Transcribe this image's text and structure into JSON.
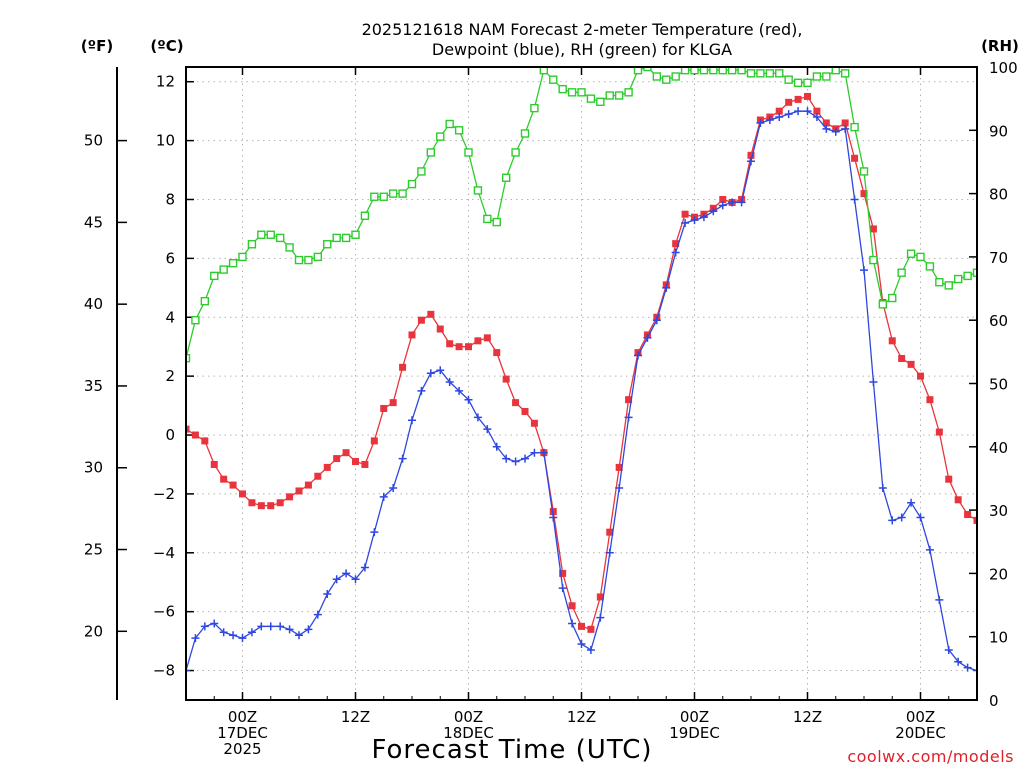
{
  "chart_data": {
    "type": "line",
    "title_line1": "2025121618 NAM Forecast 2-meter Temperature (red),",
    "title_line2": "Dewpoint (blue), RH (green) for KLGA",
    "xlabel": "Forecast Time (UTC)",
    "units": {
      "fahrenheit": "(ºF)",
      "celsius": "(ºC)",
      "rh": "(RH)"
    },
    "credit": "coolwx.com/models",
    "x_range_hours": [
      18,
      102
    ],
    "y_celsius_range": [
      -9,
      12.5
    ],
    "y_rh_range": [
      0,
      100
    ],
    "y_celsius_ticks": [
      -8,
      -6,
      -4,
      -2,
      0,
      2,
      4,
      6,
      8,
      10,
      12
    ],
    "y_fahrenheit_ticks": [
      20,
      25,
      30,
      35,
      40,
      45,
      50
    ],
    "y_rh_ticks": [
      0,
      10,
      20,
      30,
      40,
      50,
      60,
      70,
      80,
      90,
      100
    ],
    "x_ticks": [
      {
        "hour": 24,
        "lines": [
          "00Z",
          "17DEC",
          "2025"
        ]
      },
      {
        "hour": 36,
        "lines": [
          "12Z"
        ]
      },
      {
        "hour": 48,
        "lines": [
          "00Z",
          "18DEC"
        ]
      },
      {
        "hour": 60,
        "lines": [
          "12Z"
        ]
      },
      {
        "hour": 72,
        "lines": [
          "00Z",
          "19DEC"
        ]
      },
      {
        "hour": 84,
        "lines": [
          "12Z"
        ]
      },
      {
        "hour": 96,
        "lines": [
          "00Z",
          "20DEC"
        ]
      }
    ],
    "series": [
      {
        "name": "Temperature",
        "unit": "C",
        "color": "#e8343c",
        "marker": "filled-square",
        "points": [
          [
            18,
            0.2
          ],
          [
            19,
            0
          ],
          [
            20,
            -0.2
          ],
          [
            21,
            -1
          ],
          [
            22,
            -1.5
          ],
          [
            23,
            -1.7
          ],
          [
            24,
            -2
          ],
          [
            25,
            -2.3
          ],
          [
            26,
            -2.4
          ],
          [
            27,
            -2.4
          ],
          [
            28,
            -2.3
          ],
          [
            29,
            -2.1
          ],
          [
            30,
            -1.9
          ],
          [
            31,
            -1.7
          ],
          [
            32,
            -1.4
          ],
          [
            33,
            -1.1
          ],
          [
            34,
            -0.8
          ],
          [
            35,
            -0.6
          ],
          [
            36,
            -0.9
          ],
          [
            37,
            -1
          ],
          [
            38,
            -0.2
          ],
          [
            39,
            0.9
          ],
          [
            40,
            1.1
          ],
          [
            41,
            2.3
          ],
          [
            42,
            3.4
          ],
          [
            43,
            3.9
          ],
          [
            44,
            4.1
          ],
          [
            45,
            3.6
          ],
          [
            46,
            3.1
          ],
          [
            47,
            3
          ],
          [
            48,
            3
          ],
          [
            49,
            3.2
          ],
          [
            50,
            3.3
          ],
          [
            51,
            2.8
          ],
          [
            52,
            1.9
          ],
          [
            53,
            1.1
          ],
          [
            54,
            0.8
          ],
          [
            55,
            0.4
          ],
          [
            56,
            -0.6
          ],
          [
            57,
            -2.6
          ],
          [
            58,
            -4.7
          ],
          [
            59,
            -5.8
          ],
          [
            60,
            -6.5
          ],
          [
            61,
            -6.6
          ],
          [
            62,
            -5.5
          ],
          [
            63,
            -3.3
          ],
          [
            64,
            -1.1
          ],
          [
            65,
            1.2
          ],
          [
            66,
            2.8
          ],
          [
            67,
            3.4
          ],
          [
            68,
            4
          ],
          [
            69,
            5.1
          ],
          [
            70,
            6.5
          ],
          [
            71,
            7.5
          ],
          [
            72,
            7.4
          ],
          [
            73,
            7.5
          ],
          [
            74,
            7.7
          ],
          [
            75,
            8
          ],
          [
            76,
            7.9
          ],
          [
            77,
            8
          ],
          [
            78,
            9.5
          ],
          [
            79,
            10.7
          ],
          [
            80,
            10.8
          ],
          [
            81,
            11
          ],
          [
            82,
            11.3
          ],
          [
            83,
            11.4
          ],
          [
            84,
            11.5
          ],
          [
            85,
            11
          ],
          [
            86,
            10.6
          ],
          [
            87,
            10.4
          ],
          [
            88,
            10.6
          ],
          [
            89,
            9.4
          ],
          [
            90,
            8.2
          ],
          [
            91,
            7
          ],
          [
            92,
            4.5
          ],
          [
            93,
            3.2
          ],
          [
            94,
            2.6
          ],
          [
            95,
            2.4
          ],
          [
            96,
            2
          ],
          [
            97,
            1.2
          ],
          [
            98,
            0.1
          ],
          [
            99,
            -1.5
          ],
          [
            100,
            -2.2
          ],
          [
            101,
            -2.7
          ],
          [
            102,
            -2.9
          ]
        ]
      },
      {
        "name": "Dewpoint",
        "unit": "C",
        "color": "#2e47e0",
        "marker": "plus",
        "points": [
          [
            18,
            -8
          ],
          [
            19,
            -6.9
          ],
          [
            20,
            -6.5
          ],
          [
            21,
            -6.4
          ],
          [
            22,
            -6.7
          ],
          [
            23,
            -6.8
          ],
          [
            24,
            -6.9
          ],
          [
            25,
            -6.7
          ],
          [
            26,
            -6.5
          ],
          [
            27,
            -6.5
          ],
          [
            28,
            -6.5
          ],
          [
            29,
            -6.6
          ],
          [
            30,
            -6.8
          ],
          [
            31,
            -6.6
          ],
          [
            32,
            -6.1
          ],
          [
            33,
            -5.4
          ],
          [
            34,
            -4.9
          ],
          [
            35,
            -4.7
          ],
          [
            36,
            -4.9
          ],
          [
            37,
            -4.5
          ],
          [
            38,
            -3.3
          ],
          [
            39,
            -2.1
          ],
          [
            40,
            -1.8
          ],
          [
            41,
            -0.8
          ],
          [
            42,
            0.5
          ],
          [
            43,
            1.5
          ],
          [
            44,
            2.1
          ],
          [
            45,
            2.2
          ],
          [
            46,
            1.8
          ],
          [
            47,
            1.5
          ],
          [
            48,
            1.2
          ],
          [
            49,
            0.6
          ],
          [
            50,
            0.2
          ],
          [
            51,
            -0.4
          ],
          [
            52,
            -0.8
          ],
          [
            53,
            -0.9
          ],
          [
            54,
            -0.8
          ],
          [
            55,
            -0.6
          ],
          [
            56,
            -0.6
          ],
          [
            57,
            -2.8
          ],
          [
            58,
            -5.2
          ],
          [
            59,
            -6.4
          ],
          [
            60,
            -7.1
          ],
          [
            61,
            -7.3
          ],
          [
            62,
            -6.2
          ],
          [
            63,
            -4
          ],
          [
            64,
            -1.8
          ],
          [
            65,
            0.6
          ],
          [
            66,
            2.7
          ],
          [
            67,
            3.3
          ],
          [
            68,
            3.9
          ],
          [
            69,
            5
          ],
          [
            70,
            6.2
          ],
          [
            71,
            7.2
          ],
          [
            72,
            7.3
          ],
          [
            73,
            7.4
          ],
          [
            74,
            7.6
          ],
          [
            75,
            7.8
          ],
          [
            76,
            7.9
          ],
          [
            77,
            7.9
          ],
          [
            78,
            9.3
          ],
          [
            79,
            10.6
          ],
          [
            80,
            10.7
          ],
          [
            81,
            10.8
          ],
          [
            82,
            10.9
          ],
          [
            83,
            11
          ],
          [
            84,
            11
          ],
          [
            85,
            10.8
          ],
          [
            86,
            10.4
          ],
          [
            87,
            10.3
          ],
          [
            88,
            10.4
          ],
          [
            89,
            8
          ],
          [
            90,
            5.6
          ],
          [
            91,
            1.8
          ],
          [
            92,
            -1.8
          ],
          [
            93,
            -2.9
          ],
          [
            94,
            -2.8
          ],
          [
            95,
            -2.3
          ],
          [
            96,
            -2.8
          ],
          [
            97,
            -3.9
          ],
          [
            98,
            -5.6
          ],
          [
            99,
            -7.3
          ],
          [
            100,
            -7.7
          ],
          [
            101,
            -7.9
          ],
          [
            102,
            -8
          ]
        ]
      },
      {
        "name": "Relative Humidity",
        "unit": "%",
        "color": "#2dcc2d",
        "marker": "open-square",
        "points": [
          [
            18,
            54
          ],
          [
            19,
            60
          ],
          [
            20,
            63
          ],
          [
            21,
            67
          ],
          [
            22,
            68
          ],
          [
            23,
            69
          ],
          [
            24,
            70
          ],
          [
            25,
            72
          ],
          [
            26,
            73.5
          ],
          [
            27,
            73.5
          ],
          [
            28,
            73
          ],
          [
            29,
            71.5
          ],
          [
            30,
            69.5
          ],
          [
            31,
            69.5
          ],
          [
            32,
            70
          ],
          [
            33,
            72
          ],
          [
            34,
            73
          ],
          [
            35,
            73
          ],
          [
            36,
            73.5
          ],
          [
            37,
            76.5
          ],
          [
            38,
            79.5
          ],
          [
            39,
            79.5
          ],
          [
            40,
            80
          ],
          [
            41,
            80
          ],
          [
            42,
            81.5
          ],
          [
            43,
            83.5
          ],
          [
            44,
            86.5
          ],
          [
            45,
            89
          ],
          [
            46,
            91
          ],
          [
            47,
            90
          ],
          [
            48,
            86.5
          ],
          [
            49,
            80.5
          ],
          [
            50,
            76
          ],
          [
            51,
            75.5
          ],
          [
            52,
            82.5
          ],
          [
            53,
            86.5
          ],
          [
            54,
            89.5
          ],
          [
            55,
            93.5
          ],
          [
            56,
            99.5
          ],
          [
            57,
            98
          ],
          [
            58,
            96.5
          ],
          [
            59,
            96
          ],
          [
            60,
            96
          ],
          [
            61,
            95
          ],
          [
            62,
            94.5
          ],
          [
            63,
            95.5
          ],
          [
            64,
            95.5
          ],
          [
            65,
            96
          ],
          [
            66,
            99.5
          ],
          [
            67,
            100
          ],
          [
            68,
            98.5
          ],
          [
            69,
            98
          ],
          [
            70,
            98.5
          ],
          [
            71,
            99.5
          ],
          [
            72,
            99.5
          ],
          [
            73,
            99.5
          ],
          [
            74,
            99.5
          ],
          [
            75,
            99.5
          ],
          [
            76,
            99.5
          ],
          [
            77,
            99.5
          ],
          [
            78,
            99
          ],
          [
            79,
            99
          ],
          [
            80,
            99
          ],
          [
            81,
            99
          ],
          [
            82,
            98
          ],
          [
            83,
            97.5
          ],
          [
            84,
            97.5
          ],
          [
            85,
            98.5
          ],
          [
            86,
            98.5
          ],
          [
            87,
            99.5
          ],
          [
            88,
            99
          ],
          [
            89,
            90.5
          ],
          [
            90,
            83.5
          ],
          [
            91,
            69.5
          ],
          [
            92,
            62.5
          ],
          [
            93,
            63.5
          ],
          [
            94,
            67.5
          ],
          [
            95,
            70.5
          ],
          [
            96,
            70
          ],
          [
            97,
            68.5
          ],
          [
            98,
            66
          ],
          [
            99,
            65.5
          ],
          [
            100,
            66.5
          ],
          [
            101,
            67
          ],
          [
            102,
            67.5
          ]
        ]
      }
    ]
  }
}
